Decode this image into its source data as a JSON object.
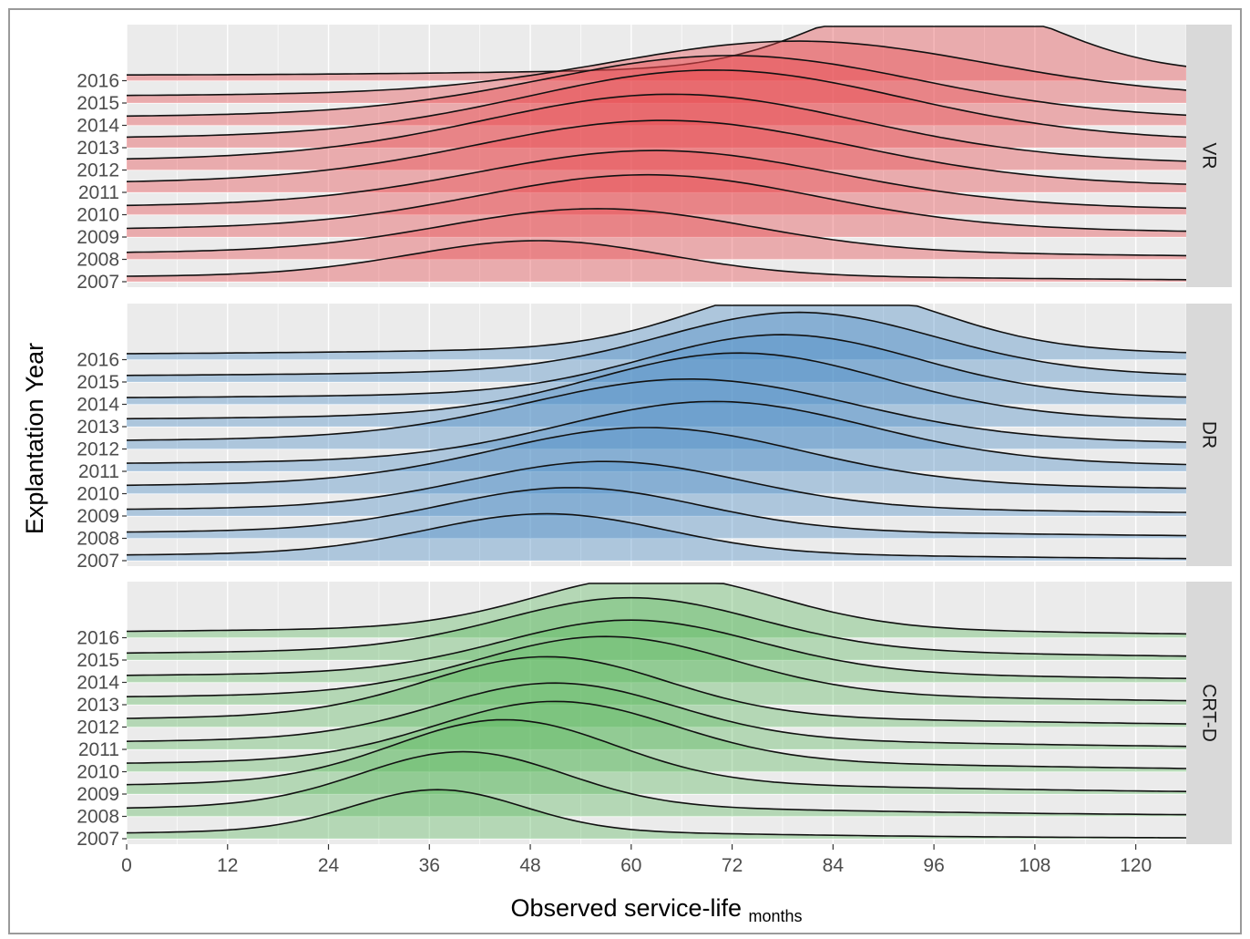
{
  "chart_data": {
    "type": "ridgeline",
    "xlabel": "Observed service-life",
    "xlabel_subscript": "months",
    "ylabel": "Explantation Year",
    "xlim": [
      0,
      126
    ],
    "x_ticks": [
      0,
      12,
      24,
      36,
      48,
      60,
      72,
      84,
      96,
      108,
      120
    ],
    "years": [
      "2007",
      "2008",
      "2009",
      "2010",
      "2011",
      "2012",
      "2013",
      "2014",
      "2015",
      "2016"
    ],
    "grid": true,
    "panels": [
      {
        "name": "VR",
        "color": "#e8454a",
        "peaks_months": [
          49,
          56,
          62,
          63,
          64,
          65,
          70,
          72,
          80,
          96
        ],
        "spread_months": [
          15,
          18,
          20,
          21,
          22,
          22,
          22,
          22,
          22,
          13
        ],
        "relative_heights": [
          2.1,
          2.6,
          3.2,
          3.3,
          3.7,
          3.9,
          4.0,
          3.6,
          3.2,
          4.4
        ]
      },
      {
        "name": "DR",
        "color": "#4a8cc4",
        "peaks_months": [
          50,
          53,
          57,
          62,
          70,
          67,
          73,
          78,
          80,
          82
        ],
        "spread_months": [
          14,
          15,
          16,
          18,
          18,
          19,
          17,
          16,
          16,
          14
        ],
        "relative_heights": [
          2.4,
          2.6,
          2.8,
          3.4,
          3.6,
          3.6,
          3.8,
          3.6,
          3.6,
          3.8
        ]
      },
      {
        "name": "CRT-D",
        "color": "#5db85e",
        "peaks_months": [
          37,
          40,
          45,
          51,
          51,
          50,
          57,
          60,
          60,
          63
        ],
        "spread_months": [
          10,
          12,
          13,
          14,
          14,
          14,
          15,
          15,
          15,
          14
        ],
        "relative_heights": [
          2.5,
          3.3,
          3.8,
          3.6,
          3.4,
          3.6,
          3.5,
          3.2,
          3.2,
          3.2
        ]
      }
    ]
  }
}
